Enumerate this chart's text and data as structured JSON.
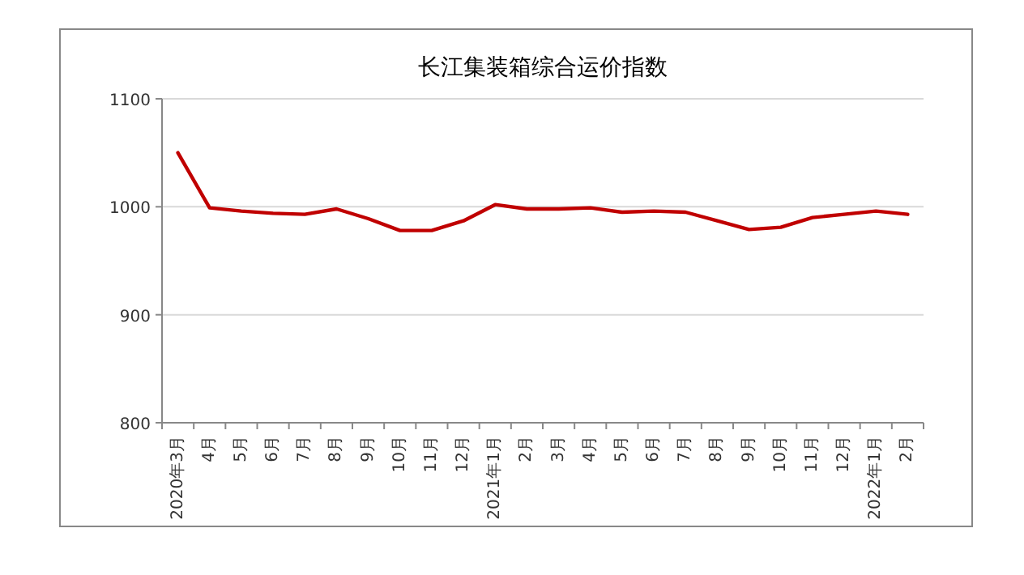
{
  "chart_data": {
    "type": "line",
    "title": "长江集装箱综合运价指数",
    "categories": [
      "2020年3月",
      "4月",
      "5月",
      "6月",
      "7月",
      "8月",
      "9月",
      "10月",
      "11月",
      "12月",
      "2021年1月",
      "2月",
      "3月",
      "4月",
      "5月",
      "6月",
      "7月",
      "8月",
      "9月",
      "10月",
      "11月",
      "12月",
      "2022年1月",
      "2月"
    ],
    "series": [
      {
        "color": "#c00000",
        "values": [
          1050,
          999,
          996,
          994,
          993,
          998,
          989,
          978,
          978,
          987,
          1002,
          998,
          998,
          999,
          995,
          996,
          995,
          987,
          979,
          981,
          990,
          993,
          996,
          993
        ]
      }
    ],
    "ylim": [
      800,
      1100
    ],
    "yticks": [
      800,
      900,
      1000,
      1100
    ],
    "grid": "y",
    "marker": "none",
    "line_style": "solid"
  }
}
